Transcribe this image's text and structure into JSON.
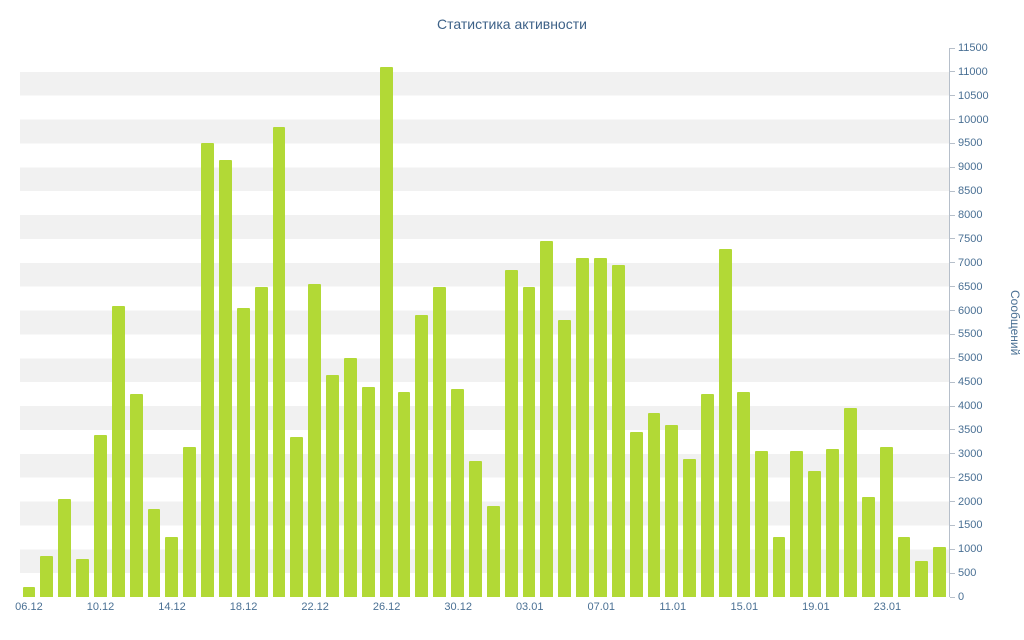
{
  "chart": {
    "colors": {
      "bar": "#b2d936",
      "stripe": "#f1f1f1",
      "title_text": "#3e6288",
      "axis_text": "#4a7094",
      "axis_line": "#b6bfca",
      "background": "#ffffff"
    }
  },
  "chart_data": {
    "type": "bar",
    "title": "Статистика активности",
    "xlabel": "",
    "ylabel": "Сообщений",
    "ylim": [
      0,
      11500
    ],
    "ytick_step": 500,
    "grid": "striped-horizontal-bands",
    "legend": "none",
    "y_axis_side": "right",
    "x_tick_labels": [
      "06.12",
      "10.12",
      "14.12",
      "18.12",
      "22.12",
      "26.12",
      "30.12",
      "03.01",
      "07.01",
      "11.01",
      "15.01",
      "19.01",
      "23.01"
    ],
    "x_tick_every": 4,
    "categories": [
      "06.12",
      "07.12",
      "08.12",
      "09.12",
      "10.12",
      "11.12",
      "12.12",
      "13.12",
      "14.12",
      "15.12",
      "16.12",
      "17.12",
      "18.12",
      "19.12",
      "20.12",
      "21.12",
      "22.12",
      "23.12",
      "24.12",
      "25.12",
      "26.12",
      "27.12",
      "28.12",
      "29.12",
      "30.12",
      "31.12",
      "01.01",
      "02.01",
      "03.01",
      "04.01",
      "05.01",
      "06.01",
      "07.01",
      "08.01",
      "09.01",
      "10.01",
      "11.01",
      "12.01",
      "13.01",
      "14.01",
      "15.01",
      "16.01",
      "17.01",
      "18.01",
      "19.01",
      "20.01",
      "21.01",
      "22.01",
      "23.01",
      "24.01",
      "25.01",
      "26.01"
    ],
    "values": [
      200,
      850,
      2050,
      800,
      3400,
      6100,
      4250,
      1850,
      1250,
      3150,
      9500,
      9150,
      6050,
      6500,
      9850,
      3350,
      6550,
      4650,
      5000,
      4400,
      11100,
      4300,
      5900,
      6500,
      4350,
      2850,
      1900,
      6850,
      6500,
      7450,
      5800,
      7100,
      7100,
      6950,
      3450,
      3850,
      3600,
      2900,
      4250,
      7300,
      4300,
      3050,
      1250,
      3050,
      2650,
      3100,
      3950,
      2100,
      3150,
      1250,
      750,
      1050
    ]
  }
}
